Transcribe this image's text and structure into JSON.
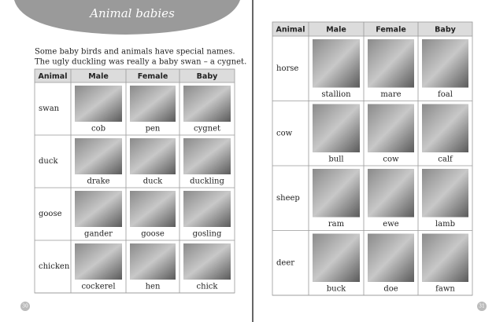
{
  "header": {
    "title": "Animal babies"
  },
  "intro": [
    "Some baby birds and animals have special names.",
    "The ugly duckling was really a baby swan – a cygnet."
  ],
  "left_table": {
    "columns": [
      "Animal",
      "Male",
      "Female",
      "Baby"
    ],
    "rows": [
      [
        "swan",
        "cob",
        "pen",
        "cygnet"
      ],
      [
        "duck",
        "drake",
        "duck",
        "duckling"
      ],
      [
        "goose",
        "gander",
        "goose",
        "gosling"
      ],
      [
        "chicken",
        "cockerel",
        "hen",
        "chick"
      ]
    ]
  },
  "right_table": {
    "columns": [
      "Animal",
      "Male",
      "Female",
      "Baby"
    ],
    "rows": [
      [
        "horse",
        "stallion",
        "mare",
        "foal"
      ],
      [
        "cow",
        "bull",
        "cow",
        "calf"
      ],
      [
        "sheep",
        "ram",
        "ewe",
        "lamb"
      ],
      [
        "deer",
        "buck",
        "doe",
        "fawn"
      ]
    ]
  },
  "page_numbers": [
    "30",
    "31"
  ]
}
